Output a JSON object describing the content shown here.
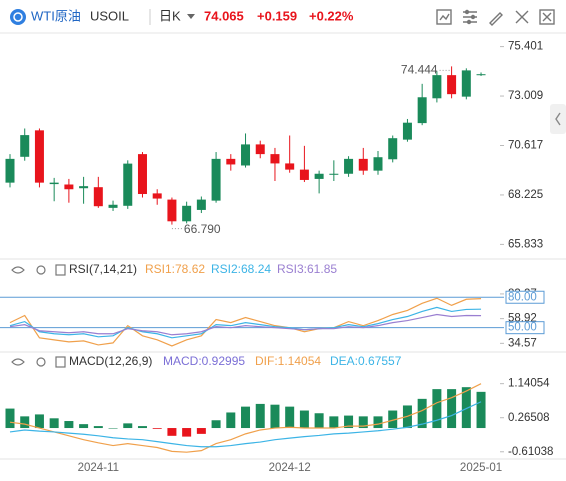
{
  "header": {
    "symbol": "WTI原油",
    "code": "USOIL",
    "period": "日K",
    "price": "74.065",
    "change": "+0.159",
    "change_pct": "+0.22%"
  },
  "chart_data": [
    {
      "type": "candlestick",
      "open": [
        68.82,
        70.07,
        71.35,
        68.75,
        68.73,
        68.55,
        68.6,
        67.6,
        67.7,
        70.2,
        68.3,
        68.0,
        66.95,
        67.5,
        67.95,
        69.97,
        69.65,
        70.67,
        70.2,
        69.75,
        69.45,
        69.0,
        69.2,
        69.25,
        69.97,
        69.4,
        69.95,
        70.9,
        71.7,
        72.9,
        74.02,
        72.98,
        74.05
      ],
      "high": [
        70.2,
        71.44,
        71.44,
        69.05,
        69.0,
        69.1,
        69.1,
        67.95,
        69.9,
        70.3,
        68.5,
        68.1,
        67.9,
        68.15,
        70.3,
        70.2,
        71.2,
        70.85,
        70.5,
        71.1,
        70.6,
        69.4,
        69.9,
        70.1,
        70.5,
        70.35,
        71.1,
        71.9,
        73.6,
        74.2,
        74.444,
        74.35,
        74.15
      ],
      "low": [
        68.59,
        69.88,
        68.59,
        67.92,
        67.85,
        67.8,
        67.6,
        67.45,
        67.55,
        68.1,
        67.75,
        66.79,
        66.85,
        67.35,
        67.85,
        69.4,
        69.55,
        70.0,
        68.9,
        69.3,
        68.85,
        68.3,
        68.9,
        69.1,
        69.2,
        69.2,
        69.8,
        70.8,
        71.6,
        72.7,
        72.9,
        72.85,
        73.98
      ],
      "close": [
        69.97,
        71.12,
        68.82,
        68.82,
        68.5,
        68.65,
        67.68,
        67.75,
        69.74,
        68.27,
        68.05,
        66.95,
        67.7,
        68.0,
        69.97,
        69.7,
        70.67,
        70.2,
        69.75,
        69.45,
        68.95,
        69.25,
        69.25,
        69.97,
        69.4,
        70.05,
        70.97,
        71.72,
        72.95,
        74.02,
        73.1,
        74.25,
        74.065
      ],
      "up_color": "#1a8a5a",
      "down_color": "#e8141c",
      "ylim": [
        65.465,
        75.72
      ],
      "yticks": [
        75.401,
        73.009,
        70.617,
        68.225,
        65.833
      ],
      "high_label": "74.444",
      "low_label": "66.790"
    },
    {
      "type": "line",
      "title": "RSI(7,14,21)",
      "series": [
        {
          "name": "RSI1:78.62",
          "color": "#f0a04b",
          "values": [
            55,
            62,
            40,
            38,
            36,
            37,
            33,
            35,
            52,
            42,
            38,
            32,
            38,
            42,
            58,
            55,
            60,
            56,
            52,
            50,
            46,
            49,
            50,
            56,
            52,
            57,
            63,
            67,
            74,
            79,
            72,
            78,
            78.62
          ]
        },
        {
          "name": "RSI2:68.24",
          "color": "#3cb4e6",
          "values": [
            52,
            56,
            46,
            44,
            43,
            44,
            41,
            42,
            50,
            46,
            44,
            40,
            42,
            44,
            53,
            52,
            55,
            53,
            51,
            50,
            48,
            49,
            50,
            53,
            51,
            54,
            58,
            61,
            66,
            70,
            66,
            68,
            68.24
          ]
        },
        {
          "name": "RSI3:61.85",
          "color": "#9a7fd1",
          "values": [
            51,
            53,
            47,
            46,
            45,
            46,
            44,
            44,
            49,
            47,
            46,
            43,
            44,
            46,
            51,
            50,
            52,
            51,
            50,
            49,
            48,
            49,
            49,
            51,
            50,
            52,
            55,
            57,
            60,
            63,
            61,
            62,
            61.85
          ]
        }
      ],
      "ylim": [
        28,
        97
      ],
      "yticks": [
        83.27,
        58.92,
        34.57
      ],
      "hlines": [
        {
          "value": 80,
          "label": "80.00",
          "color": "#5b9bd5"
        },
        {
          "value": 50,
          "label": "50.00",
          "color": "#5b9bd5"
        }
      ]
    },
    {
      "type": "macd",
      "title": "MACD(12,26,9)",
      "categories": [
        null,
        null,
        null,
        null,
        null,
        null,
        "2024-11",
        null,
        null,
        null,
        null,
        null,
        null,
        null,
        null,
        null,
        null,
        null,
        null,
        "2024-12",
        null,
        null,
        null,
        null,
        null,
        null,
        null,
        null,
        null,
        null,
        null,
        null,
        "2025-01"
      ],
      "series": [
        {
          "name": "MACD:0.92995",
          "type": "bar",
          "color": "#7b6fd6",
          "up_color": "#1a8a5a",
          "down_color": "#e8141c",
          "values": [
            0.5,
            0.3,
            0.35,
            0.25,
            0.18,
            0.1,
            0.05,
            0.0,
            0.12,
            0.05,
            -0.02,
            -0.2,
            -0.22,
            -0.15,
            0.2,
            0.4,
            0.55,
            0.62,
            0.6,
            0.55,
            0.45,
            0.38,
            0.3,
            0.32,
            0.3,
            0.3,
            0.45,
            0.58,
            0.75,
            1.0,
            1.0,
            1.05,
            0.92995
          ]
        },
        {
          "name": "DIF:1.14054",
          "type": "line",
          "color": "#f0a04b",
          "values": [
            0.15,
            0.1,
            0.0,
            -0.1,
            -0.2,
            -0.3,
            -0.38,
            -0.45,
            -0.4,
            -0.45,
            -0.5,
            -0.6,
            -0.62,
            -0.58,
            -0.4,
            -0.3,
            -0.15,
            -0.05,
            0.0,
            0.02,
            0.0,
            0.0,
            0.0,
            0.05,
            0.05,
            0.1,
            0.2,
            0.3,
            0.45,
            0.65,
            0.78,
            0.95,
            1.14054
          ]
        },
        {
          "name": "DEA:0.67557",
          "type": "line",
          "color": "#3cb4e6",
          "values": [
            -0.1,
            -0.05,
            -0.08,
            -0.1,
            -0.13,
            -0.16,
            -0.2,
            -0.25,
            -0.28,
            -0.3,
            -0.35,
            -0.4,
            -0.45,
            -0.48,
            -0.48,
            -0.45,
            -0.4,
            -0.36,
            -0.3,
            -0.26,
            -0.22,
            -0.19,
            -0.15,
            -0.13,
            -0.1,
            -0.07,
            -0.03,
            0.02,
            0.1,
            0.2,
            0.32,
            0.5,
            0.67557
          ]
        }
      ],
      "ylim": [
        -0.77,
        1.44
      ],
      "yticks": [
        1.14054,
        0.26508,
        -0.61038
      ]
    }
  ]
}
